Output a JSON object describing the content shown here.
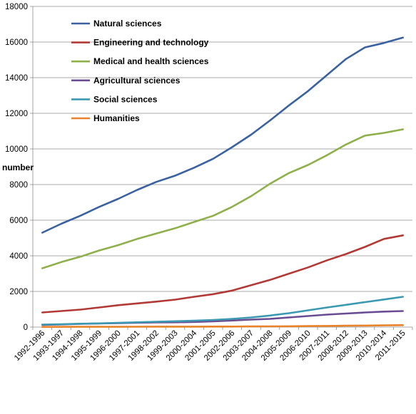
{
  "chart_data": {
    "type": "line",
    "title": "",
    "xlabel": "",
    "ylabel": "number",
    "ylim": [
      0,
      18000
    ],
    "yticks": [
      0,
      2000,
      4000,
      6000,
      8000,
      10000,
      12000,
      14000,
      16000,
      18000
    ],
    "grid": "horizontal",
    "legend_position": "top-left",
    "categories": [
      "1992-1996",
      "1993-1997",
      "1994-1998",
      "1995-1999",
      "1996-2000",
      "1997-2001",
      "1998-2002",
      "1999-2003",
      "2000-2004",
      "2001-2005",
      "2002-2006",
      "2003-2007",
      "2004-2008",
      "2005-2009",
      "2006-2010",
      "2007-2011",
      "2008-2012",
      "2009-2013",
      "2010-2014",
      "2011-2015"
    ],
    "series": [
      {
        "name": "Natural sciences",
        "color": "#3A62A0",
        "values": [
          5300,
          5800,
          6250,
          6750,
          7200,
          7700,
          8150,
          8500,
          8950,
          9450,
          10100,
          10800,
          11600,
          12450,
          13250,
          14150,
          15050,
          15700,
          15950,
          16250
        ]
      },
      {
        "name": "Engineering and technology",
        "color": "#B23A36",
        "values": [
          820,
          900,
          980,
          1100,
          1230,
          1330,
          1430,
          1540,
          1700,
          1850,
          2050,
          2350,
          2650,
          3000,
          3350,
          3750,
          4100,
          4500,
          4950,
          5150
        ]
      },
      {
        "name": "Medical and health sciences",
        "color": "#8EB04A",
        "values": [
          3300,
          3650,
          3950,
          4300,
          4600,
          4950,
          5250,
          5550,
          5900,
          6250,
          6750,
          7350,
          8050,
          8650,
          9100,
          9650,
          10250,
          10750,
          10900,
          11100
        ]
      },
      {
        "name": "Agricultural sciences",
        "color": "#6A4C93",
        "values": [
          120,
          150,
          180,
          200,
          220,
          240,
          260,
          270,
          290,
          320,
          370,
          420,
          460,
          540,
          620,
          700,
          760,
          820,
          870,
          900
        ]
      },
      {
        "name": "Social sciences",
        "color": "#3B9AB2",
        "values": [
          140,
          160,
          190,
          210,
          240,
          270,
          300,
          330,
          360,
          400,
          460,
          540,
          650,
          780,
          940,
          1100,
          1250,
          1400,
          1550,
          1700
        ]
      },
      {
        "name": "Humanities",
        "color": "#E8832A",
        "values": [
          10,
          12,
          14,
          16,
          18,
          20,
          22,
          24,
          26,
          28,
          30,
          35,
          40,
          45,
          55,
          65,
          75,
          85,
          95,
          110
        ]
      }
    ]
  }
}
